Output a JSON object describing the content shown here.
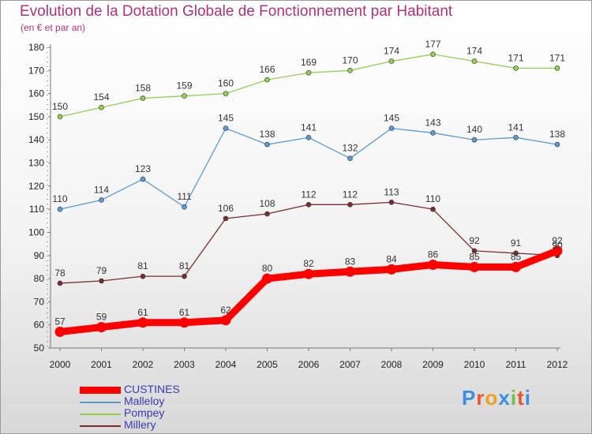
{
  "title": "Evolution de la Dotation Globale de Fonctionnement par Habitant",
  "subtitle": "(en € et par an)",
  "brand": {
    "name": "Proxiti",
    "letters": [
      "P",
      "r",
      "o",
      "x",
      "i",
      "t",
      "i"
    ],
    "colors": [
      "#3a8ee6",
      "#e8552a",
      "#f0a020",
      "#3a8ee6",
      "#6cc24a",
      "#e8552a",
      "#3a8ee6"
    ]
  },
  "chart_data": {
    "type": "line",
    "title": "Evolution de la Dotation Globale de Fonctionnement par Habitant",
    "subtitle": "(en € et par an)",
    "xlabel": "",
    "ylabel": "",
    "ylim": [
      50,
      180
    ],
    "yticks": [
      50,
      60,
      70,
      80,
      90,
      100,
      110,
      120,
      130,
      140,
      150,
      160,
      170,
      180
    ],
    "x": [
      "2000",
      "2001",
      "2002",
      "2003",
      "2004",
      "2005",
      "2006",
      "2007",
      "2008",
      "2009",
      "2010",
      "2011",
      "2012"
    ],
    "grid": false,
    "legend_position": "bottom-left",
    "series": [
      {
        "name": "CUSTINES",
        "color": "#ff0000",
        "values": [
          57,
          59,
          61,
          61,
          62,
          80,
          82,
          83,
          84,
          86,
          85,
          85,
          92
        ]
      },
      {
        "name": "Malleloy",
        "color": "#5b9bd5",
        "values": [
          110,
          114,
          123,
          111,
          145,
          138,
          141,
          132,
          145,
          143,
          140,
          141,
          138
        ]
      },
      {
        "name": "Pompey",
        "color": "#92d050",
        "values": [
          150,
          154,
          158,
          159,
          160,
          166,
          169,
          170,
          174,
          177,
          174,
          171,
          171
        ]
      },
      {
        "name": "Millery",
        "color": "#7b2d2d",
        "values": [
          78,
          79,
          81,
          81,
          106,
          108,
          112,
          112,
          113,
          110,
          92,
          91,
          90
        ]
      }
    ]
  }
}
